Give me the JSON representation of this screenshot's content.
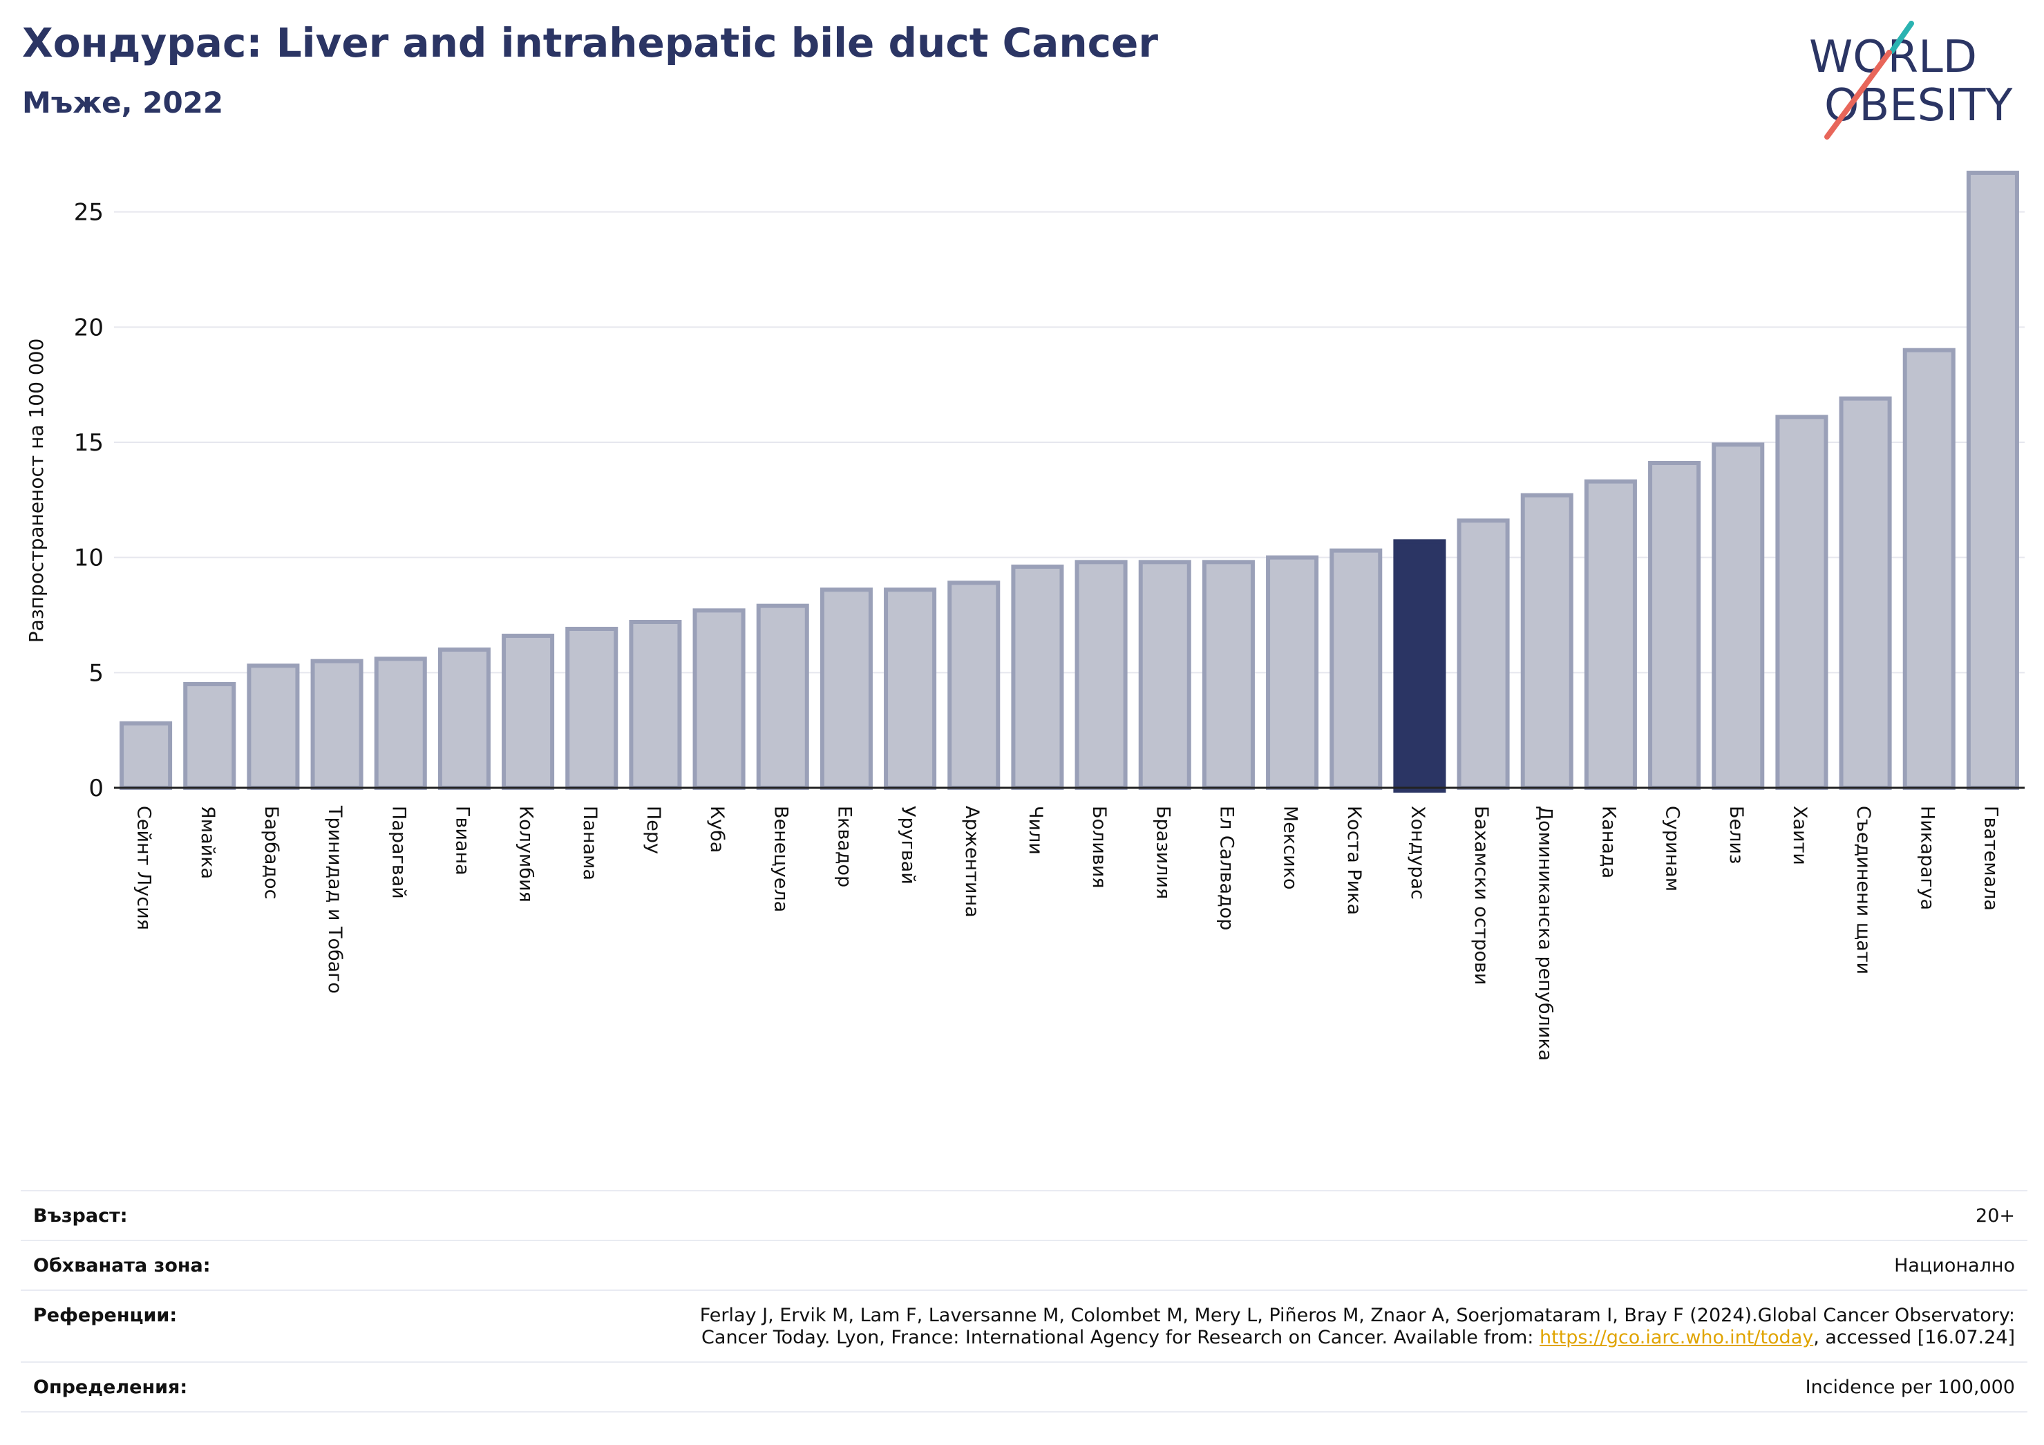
{
  "header": {
    "title": "Хондурас: Liver and intrahepatic bile duct Cancer",
    "subtitle": "Мъже, 2022"
  },
  "logo": {
    "line1": "WORLD",
    "line2": "OBESITY",
    "colors": {
      "navy": "#2b3564",
      "teal": "#2ab3b1",
      "coral": "#e8665a"
    }
  },
  "chart_data": {
    "type": "bar",
    "title": "Хондурас: Liver and intrahepatic bile duct Cancer",
    "subtitle": "Мъже, 2022",
    "xlabel": "",
    "ylabel": "Разпространеност  на 100 000",
    "ylim": [
      0,
      27
    ],
    "yticks": [
      0,
      5,
      10,
      15,
      20,
      25
    ],
    "grid": true,
    "highlight": "Хондурас",
    "colors": {
      "bar": "#bfc2cf",
      "bar_border": "#9aa0b8",
      "highlight": "#2b3564",
      "grid": "#e6e7ee",
      "axis": "#222222"
    },
    "categories": [
      "Сейнт Лусия",
      "Ямайка",
      "Барбадос",
      "Тринидад и Тобаго",
      "Парагвай",
      "Гвиана",
      "Колумбия",
      "Панама",
      "Перу",
      "Куба",
      "Венецуела",
      "Еквадор",
      "Уругвай",
      "Аржентина",
      "Чили",
      "Боливия",
      "Бразилия",
      "Ел Салвадор",
      "Мексико",
      "Коста Рика",
      "Хондурас",
      "Бахамски острови",
      "Доминиканска република",
      "Канада",
      "Суринам",
      "Белиз",
      "Хаити",
      "Съединени щати",
      "Никарагуа",
      "Гватемала"
    ],
    "values": [
      2.8,
      4.5,
      5.3,
      5.5,
      5.6,
      6.0,
      6.6,
      6.9,
      7.2,
      7.7,
      7.9,
      8.6,
      8.6,
      8.9,
      9.6,
      9.8,
      9.8,
      9.8,
      10.0,
      10.3,
      10.7,
      11.6,
      12.7,
      13.3,
      14.1,
      14.9,
      16.1,
      16.9,
      19.0,
      26.7
    ]
  },
  "info": {
    "age_label": "Възраст:",
    "age_value": "20+",
    "area_label": "Обхваната зона:",
    "area_value": "Национално",
    "ref_label": "Референции:",
    "ref_line1": "Ferlay J, Ervik M, Lam F, Laversanne M, Colombet M, Mery L, Piñeros M, Znaor A, Soerjomataram I, Bray F (2024).Global Cancer Observatory:",
    "ref_line2_pre": "Cancer Today. Lyon, France: International Agency for Research on Cancer. Available from: ",
    "ref_link": "https://gco.iarc.who.int/today",
    "ref_line2_post": ", accessed [16.07.24]",
    "def_label": "Определения:",
    "def_value": "Incidence per 100,000"
  }
}
